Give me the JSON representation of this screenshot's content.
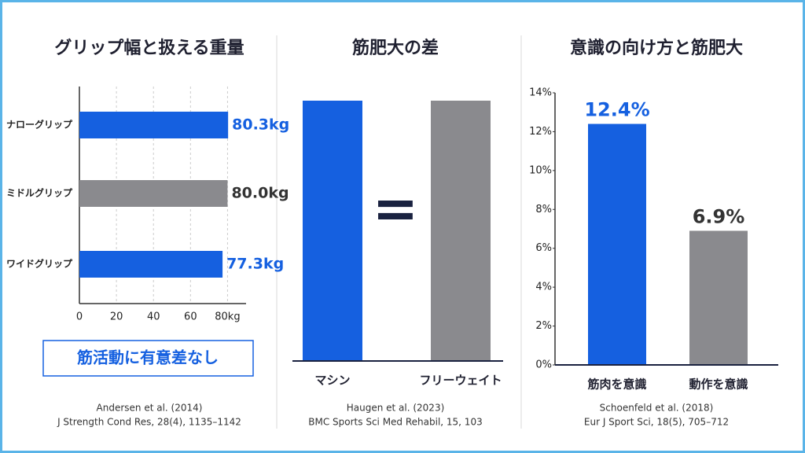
{
  "chart_data": [
    {
      "type": "bar",
      "orientation": "horizontal",
      "title": "グリップ幅と扱える重量",
      "categories": [
        "ナローグリップ",
        "ミドルグリップ",
        "ワイドグリップ"
      ],
      "values": [
        80.3,
        80.0,
        77.3
      ],
      "value_labels": [
        "80.3kg",
        "80.0kg",
        "77.3kg"
      ],
      "colors": [
        "#1560e0",
        "#8a8a8e",
        "#1560e0"
      ],
      "xlim": [
        0,
        90
      ],
      "xticks": [
        0,
        20,
        40,
        60,
        {
          "value": 80,
          "label": "80kg"
        }
      ],
      "grid": true,
      "annotation": "筋活動に有意差なし",
      "source": [
        "Andersen et al. (2014)",
        "J Strength Cond Res, 28(4), 1135–1142"
      ]
    },
    {
      "type": "bar",
      "title": "筋肥大の差",
      "categories": [
        "マシン",
        "フリーウェイト"
      ],
      "values": [
        1,
        1
      ],
      "colors": [
        "#1560e0",
        "#8a8a8e"
      ],
      "source": [
        "Haugen et al. (2023)",
        "BMC Sports Sci Med Rehabil, 15, 103"
      ]
    },
    {
      "type": "bar",
      "title": "意識の向け方と筋肥大",
      "categories": [
        "筋肉を意識",
        "動作を意識"
      ],
      "values": [
        12.4,
        6.9
      ],
      "value_labels": [
        "12.4%",
        "6.9%"
      ],
      "colors": [
        "#1560e0",
        "#8a8a8e"
      ],
      "ylim": [
        0,
        14
      ],
      "yticks": [
        {
          "value": 0,
          "label": "0%"
        },
        {
          "value": 2,
          "label": "2%"
        },
        {
          "value": 4,
          "label": "4%"
        },
        {
          "value": 6,
          "label": "6%"
        },
        {
          "value": 8,
          "label": "8%"
        },
        {
          "value": 10,
          "label": "10%"
        },
        {
          "value": 12,
          "label": "12%"
        },
        {
          "value": 14,
          "label": "14%"
        }
      ],
      "source": [
        "Schoenfeld et al. (2018)",
        "Eur J Sport Sci, 18(5), 705–712"
      ]
    }
  ]
}
